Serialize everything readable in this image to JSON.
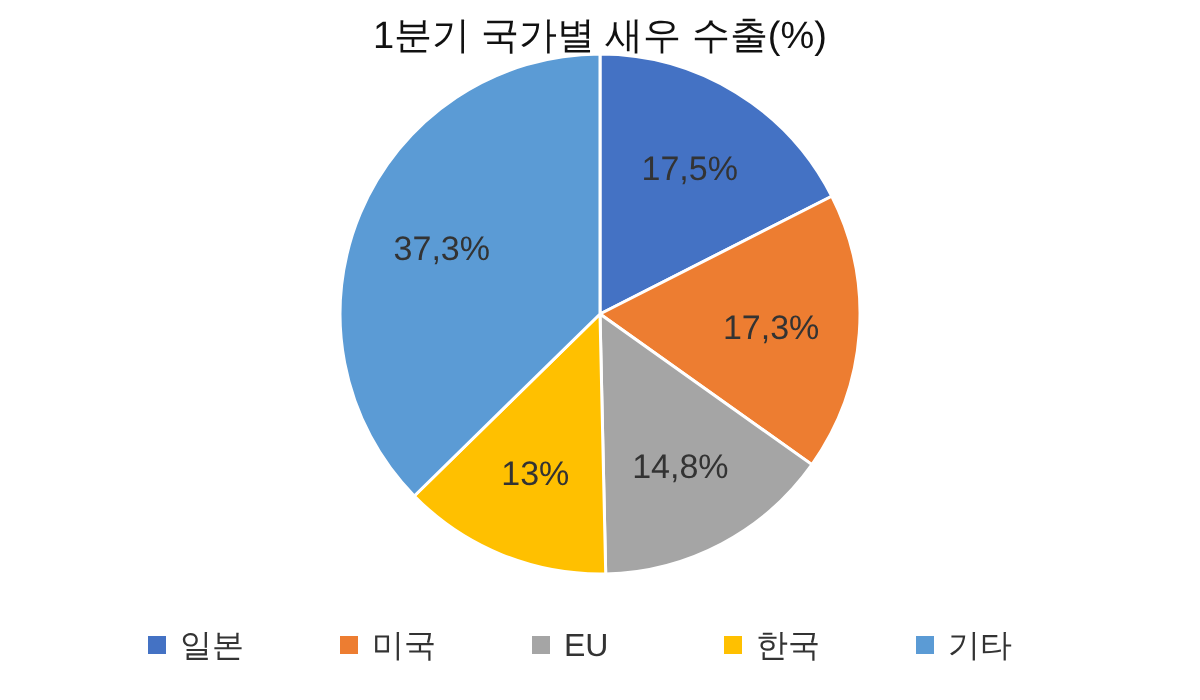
{
  "chart_data": {
    "type": "pie",
    "title": "1분기 국가별 새우 수출(%)",
    "categories": [
      "일본",
      "미국",
      "EU",
      "한국",
      "기타"
    ],
    "values": [
      17.5,
      17.3,
      14.8,
      13,
      37.3
    ],
    "value_labels": [
      "17,5%",
      "17,3%",
      "14,8%",
      "13%",
      "37,3%"
    ],
    "colors": [
      "#4472c4",
      "#ed7d31",
      "#a5a5a5",
      "#ffc000",
      "#5b9bd5"
    ],
    "legend": "bottom"
  }
}
